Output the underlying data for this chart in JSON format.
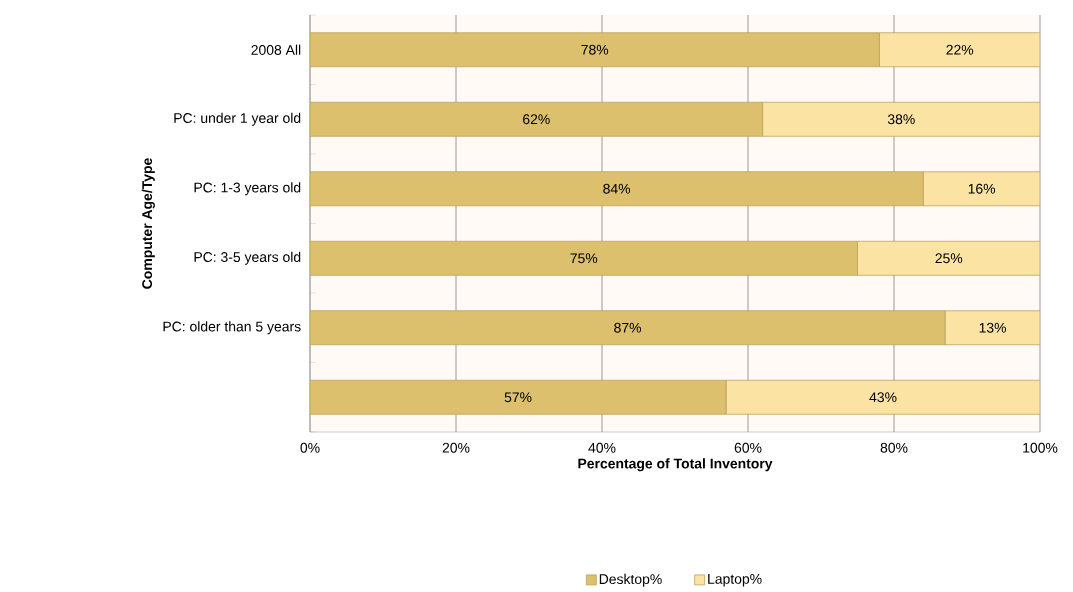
{
  "chart_data": {
    "type": "bar",
    "orientation": "horizontal",
    "stacked": true,
    "xlabel": "Percentage of Total Inventory",
    "ylabel": "Computer Age/Type",
    "categories": [
      "2008 All",
      "PC: under 1 year old",
      "PC: 1-3 years old",
      "PC: 3-5 years old",
      "PC: older than 5 years",
      null
    ],
    "series": [
      {
        "name": "Desktop%",
        "color": "#dcc06e",
        "values": [
          78,
          62,
          84,
          75,
          87,
          57
        ],
        "value_labels": [
          "78%",
          "62%",
          "84%",
          "75%",
          "87%",
          "57%"
        ]
      },
      {
        "name": "Laptop%",
        "color": "#fbe3a4",
        "values": [
          22,
          38,
          16,
          25,
          13,
          43
        ],
        "value_labels": [
          "22%",
          "38%",
          "16%",
          "25%",
          "13%",
          "43%"
        ]
      }
    ],
    "xlim": [
      0,
      100
    ],
    "xticks": [
      {
        "value": 0,
        "label": "0%"
      },
      {
        "value": 20,
        "label": "20%"
      },
      {
        "value": 40,
        "label": "40%"
      },
      {
        "value": 60,
        "label": "60%"
      },
      {
        "value": 80,
        "label": "80%"
      },
      {
        "value": 100,
        "label": "100%"
      }
    ],
    "grid": "x",
    "legend": "bottom"
  }
}
